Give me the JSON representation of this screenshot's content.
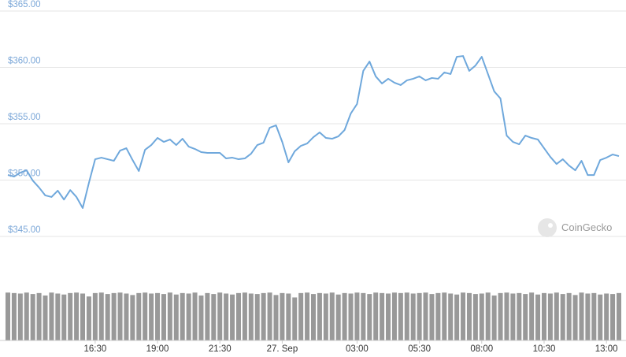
{
  "chart_data": {
    "type": "line",
    "color": "#6fa8dc",
    "grid": true,
    "watermark": "CoinGecko",
    "xlim": [
      13,
      37.5
    ],
    "ylim": [
      345,
      365
    ],
    "yticks": [
      {
        "value": 345,
        "label": "$345.00"
      },
      {
        "value": 350,
        "label": "$350.00"
      },
      {
        "value": 355,
        "label": "$355.00"
      },
      {
        "value": 360,
        "label": "$360.00"
      },
      {
        "value": 365,
        "label": "$365.00"
      }
    ],
    "xticks": [
      {
        "value": 16.5,
        "label": "16:30"
      },
      {
        "value": 19,
        "label": "19:00"
      },
      {
        "value": 21.5,
        "label": "21:30"
      },
      {
        "value": 24,
        "label": "27. Sep"
      },
      {
        "value": 27,
        "label": "03:00"
      },
      {
        "value": 29.5,
        "label": "05:30"
      },
      {
        "value": 32,
        "label": "08:00"
      },
      {
        "value": 34.5,
        "label": "10:30"
      },
      {
        "value": 37,
        "label": "13:00"
      }
    ],
    "x": [
      13,
      13.25,
      13.5,
      13.75,
      14,
      14.25,
      14.5,
      14.75,
      15,
      15.25,
      15.5,
      15.75,
      16,
      16.25,
      16.5,
      16.75,
      17,
      17.25,
      17.5,
      17.75,
      18,
      18.25,
      18.5,
      18.75,
      19,
      19.25,
      19.5,
      19.75,
      20,
      20.25,
      20.5,
      20.75,
      21,
      21.25,
      21.5,
      21.75,
      22,
      22.25,
      22.5,
      22.75,
      23,
      23.25,
      23.5,
      23.75,
      24,
      24.25,
      24.5,
      24.75,
      25,
      25.25,
      25.5,
      25.75,
      26,
      26.25,
      26.5,
      26.75,
      27,
      27.25,
      27.5,
      27.75,
      28,
      28.25,
      28.5,
      28.75,
      29,
      29.25,
      29.5,
      29.75,
      30,
      30.25,
      30.5,
      30.75,
      31,
      31.25,
      31.5,
      31.75,
      32,
      32.25,
      32.5,
      32.75,
      33,
      33.25,
      33.5,
      33.75,
      34,
      34.25,
      34.5,
      34.75,
      35,
      35.25,
      35.5,
      35.75,
      36,
      36.25,
      36.5,
      36.75,
      37,
      37.25,
      37.5
    ],
    "values": [
      350.45,
      350.31,
      350.66,
      350.87,
      349.95,
      349.34,
      348.64,
      348.5,
      349.06,
      348.27,
      349.11,
      348.5,
      347.52,
      349.76,
      351.85,
      351.99,
      351.85,
      351.71,
      352.62,
      352.83,
      351.78,
      350.8,
      352.69,
      353.11,
      353.74,
      353.39,
      353.6,
      353.11,
      353.67,
      352.97,
      352.76,
      352.48,
      352.41,
      352.41,
      352.41,
      351.92,
      351.99,
      351.85,
      351.92,
      352.34,
      353.11,
      353.32,
      354.65,
      354.86,
      353.39,
      351.57,
      352.55,
      353.04,
      353.25,
      353.81,
      354.23,
      353.74,
      353.67,
      353.88,
      354.44,
      355.91,
      356.75,
      359.69,
      360.52,
      359.2,
      358.57,
      358.99,
      358.64,
      358.43,
      358.85,
      358.99,
      359.2,
      358.85,
      359.06,
      358.99,
      359.55,
      359.41,
      360.94,
      361.01,
      359.69,
      360.17,
      360.94,
      359.41,
      357.87,
      357.24,
      353.95,
      353.39,
      353.18,
      353.95,
      353.74,
      353.6,
      352.83,
      352.06,
      351.43,
      351.85,
      351.29,
      350.87,
      351.71,
      350.45,
      350.45,
      351.78,
      351.99,
      352.27,
      352.13
    ],
    "volume": {
      "color": "#999999",
      "ylim": [
        0,
        100
      ],
      "values": [
        98,
        97,
        96,
        98,
        95,
        97,
        92,
        98,
        96,
        94,
        97,
        98,
        96,
        90,
        97,
        98,
        95,
        97,
        98,
        96,
        93,
        97,
        98,
        96,
        97,
        95,
        98,
        94,
        97,
        96,
        98,
        92,
        97,
        95,
        98,
        96,
        94,
        97,
        98,
        96,
        95,
        97,
        98,
        93,
        97,
        96,
        88,
        97,
        98,
        95,
        97,
        96,
        98,
        94,
        97,
        96,
        98,
        97,
        95,
        98,
        97,
        96,
        98,
        97,
        98,
        96,
        97,
        98,
        95,
        97,
        98,
        96,
        94,
        98,
        97,
        95,
        96,
        98,
        92,
        97,
        98,
        96,
        97,
        95,
        98,
        94,
        97,
        96,
        98,
        95,
        97,
        93,
        98,
        96,
        97,
        94,
        96,
        95,
        97
      ]
    }
  }
}
